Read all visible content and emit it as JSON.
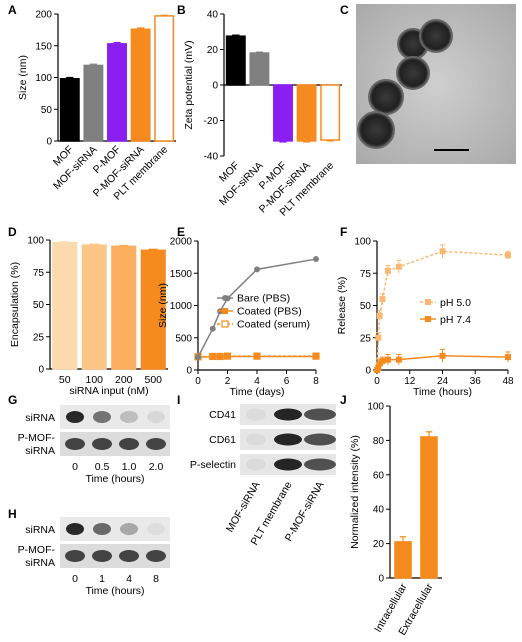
{
  "panels": {
    "A": {
      "letter": "A",
      "type": "bar",
      "ylabel": "Size (nm)",
      "ylim": [
        0,
        200
      ],
      "yticks": [
        0,
        50,
        100,
        150,
        200
      ],
      "categories": [
        "MOF",
        "MOF-siRNA",
        "P-MOF",
        "P-MOF-siRNA",
        "PLT membrane"
      ],
      "values": [
        98,
        119,
        153,
        176,
        197
      ],
      "errors": [
        2,
        2,
        2,
        2,
        1
      ],
      "colors": [
        "#000000",
        "#808080",
        "#8B1EF0",
        "#F58B1E",
        "#FFFFFF"
      ],
      "edge": [
        "#000000",
        "#808080",
        "#8B1EF0",
        "#F58B1E",
        "#F58B1E"
      ]
    },
    "B": {
      "letter": "B",
      "type": "bar",
      "ylabel": "Zeta potential (mV)",
      "ylim": [
        -40,
        40
      ],
      "yticks": [
        -40,
        -20,
        0,
        20,
        40
      ],
      "categories": [
        "MOF",
        "MOF-siRNA",
        "P-MOF",
        "P-MOF-siRNA",
        "PLT membrane"
      ],
      "values": [
        27.5,
        18,
        -31.5,
        -31.5,
        -31
      ],
      "errors": [
        0.6,
        0.5,
        0.6,
        0.6,
        0.5
      ],
      "colors": [
        "#000000",
        "#808080",
        "#8B1EF0",
        "#F58B1E",
        "#FFFFFF"
      ],
      "edge": [
        "#000000",
        "#808080",
        "#8B1EF0",
        "#F58B1E",
        "#F58B1E"
      ]
    },
    "C": {
      "letter": "C"
    },
    "D": {
      "letter": "D",
      "type": "bar",
      "ylabel": "Encapsulation (%)",
      "xlabel": "siRNA input (nM)",
      "ylim": [
        0,
        100
      ],
      "yticks": [
        0,
        25,
        50,
        75,
        100
      ],
      "categories": [
        "50",
        "100",
        "200",
        "500"
      ],
      "values": [
        98,
        96,
        95,
        92
      ],
      "errors": [
        0.6,
        0.8,
        0.8,
        0.8
      ],
      "colors": [
        "#FCDAB0",
        "#FCC688",
        "#FAAE5E",
        "#F58B1E"
      ]
    },
    "E": {
      "letter": "E",
      "type": "line",
      "ylabel": "Size (nm)",
      "xlabel": "Time (days)",
      "ylim": [
        0,
        2000
      ],
      "yticks": [
        0,
        500,
        1000,
        1500,
        2000
      ],
      "xlim": [
        0,
        8
      ],
      "xticks": [
        0,
        2,
        4,
        6,
        8
      ],
      "series": [
        {
          "name": "Bare (PBS)",
          "x": [
            0,
            1,
            1.5,
            2,
            4,
            8
          ],
          "y": [
            200,
            640,
            910,
            1110,
            1560,
            1720
          ],
          "color": "#808080",
          "style": "solid",
          "marker": "circle-filled"
        },
        {
          "name": "Coated (PBS)",
          "x": [
            0,
            1,
            1.5,
            2,
            4,
            8
          ],
          "y": [
            200,
            205,
            205,
            210,
            210,
            210
          ],
          "color": "#F58B1E",
          "style": "solid",
          "marker": "square-filled"
        },
        {
          "name": "Coated (serum)",
          "x": [
            0,
            1,
            1.5,
            2,
            4,
            8
          ],
          "y": [
            205,
            210,
            210,
            215,
            215,
            215
          ],
          "color": "#F58B1E",
          "style": "dashed",
          "marker": "square-open"
        }
      ]
    },
    "F": {
      "letter": "F",
      "type": "line",
      "ylabel": "Release (%)",
      "xlabel": "Time (hours)",
      "ylim": [
        0,
        100
      ],
      "yticks": [
        0,
        25,
        50,
        75,
        100
      ],
      "xlim": [
        0,
        48
      ],
      "xticks": [
        0,
        12,
        24,
        36,
        48
      ],
      "series": [
        {
          "name": "pH 5.0",
          "x": [
            0,
            0.5,
            1,
            2,
            4,
            8,
            24,
            48
          ],
          "y": [
            0,
            25,
            42,
            55,
            77,
            80,
            92,
            89
          ],
          "errors": [
            0,
            4,
            4,
            4,
            4,
            5,
            5,
            3
          ],
          "color": "#FAB872",
          "style": "dashed"
        },
        {
          "name": "pH 7.4",
          "x": [
            0,
            0.5,
            1,
            2,
            4,
            8,
            24,
            48
          ],
          "y": [
            0,
            2,
            5,
            7,
            8,
            8,
            11,
            10
          ],
          "errors": [
            0,
            2,
            3,
            3,
            4,
            4,
            5,
            4
          ],
          "color": "#F58B1E",
          "style": "solid"
        }
      ]
    },
    "G": {
      "letter": "G",
      "rows": [
        "siRNA",
        "P-MOF-\nsiRNA"
      ],
      "ticks": [
        "0",
        "0.5",
        "1.0",
        "2.0"
      ],
      "xlabel": "Time (hours)",
      "siRNA_intensity": [
        0.9,
        0.55,
        0.2,
        0.08
      ]
    },
    "H": {
      "letter": "H",
      "rows": [
        "siRNA",
        "P-MOF-\nsiRNA"
      ],
      "ticks": [
        "0",
        "1",
        "4",
        "8"
      ],
      "xlabel": "Time (hours)",
      "siRNA_intensity": [
        0.9,
        0.6,
        0.3,
        0.05
      ]
    },
    "I": {
      "letter": "I",
      "rows": [
        "CD41",
        "CD61",
        "P-selectin"
      ],
      "columns": [
        "MOF-siRNA",
        "PLT membrane",
        "P-MOF-siRNA"
      ]
    },
    "J": {
      "letter": "J",
      "type": "bar",
      "ylabel": "Normalized intensity (%)",
      "ylim": [
        0,
        100
      ],
      "yticks": [
        0,
        20,
        40,
        60,
        80,
        100
      ],
      "categories": [
        "Intracellular",
        "Extracellular"
      ],
      "values": [
        21,
        82
      ],
      "errors": [
        3,
        3
      ],
      "colors": [
        "#F58B1E",
        "#F58B1E"
      ]
    }
  }
}
